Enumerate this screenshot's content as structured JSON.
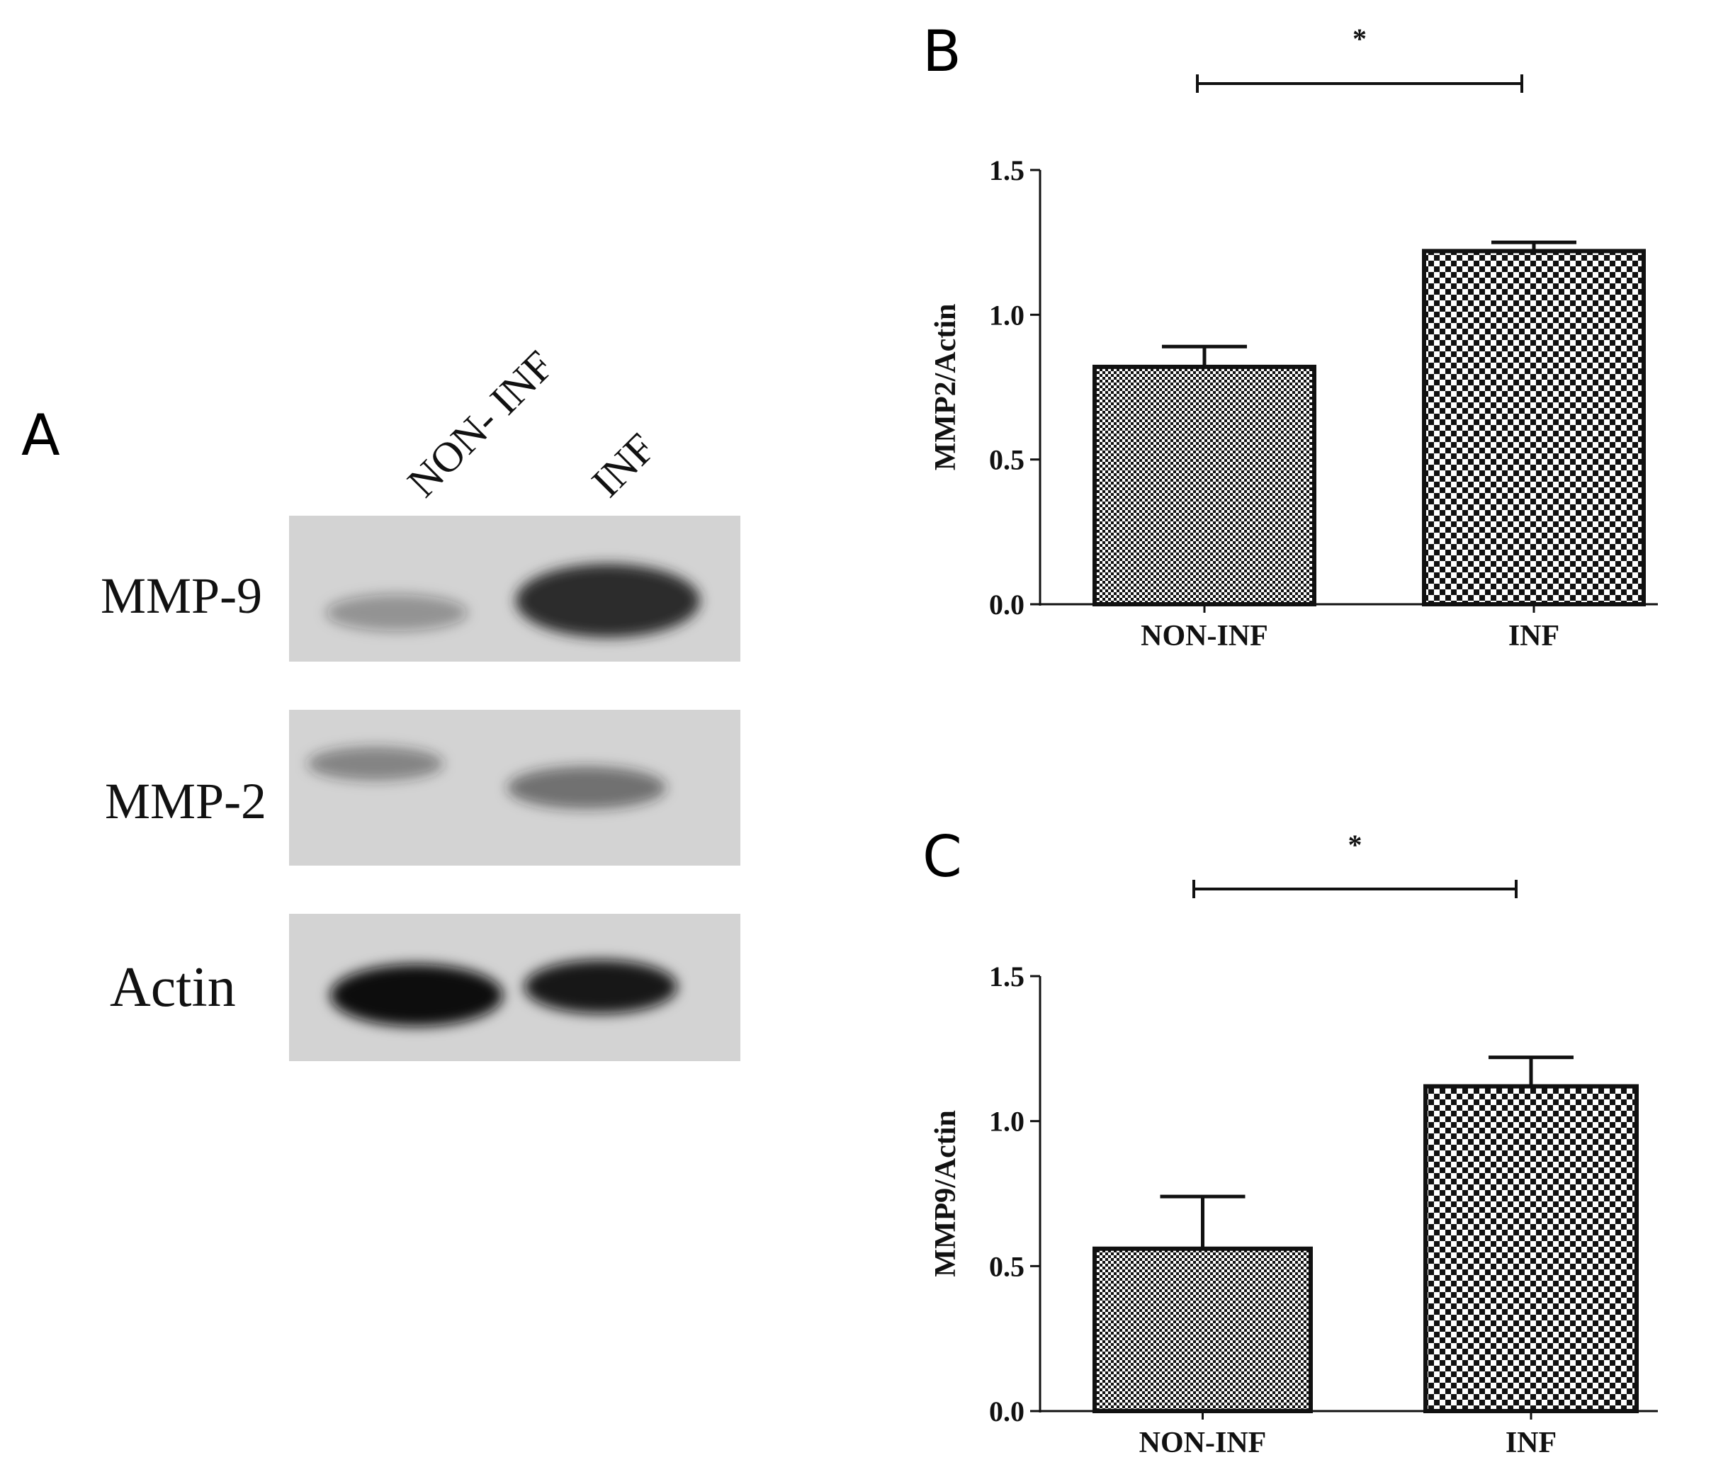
{
  "panels": {
    "a": {
      "letter": "A",
      "lanes": [
        "NON- INF",
        "INF"
      ],
      "blots": [
        {
          "label": "MMP-9",
          "bands": [
            0.35,
            0.95
          ]
        },
        {
          "label": "MMP-2",
          "bands": [
            0.45,
            0.55
          ]
        },
        {
          "label": "Actin",
          "bands": [
            1.0,
            0.95
          ]
        }
      ]
    },
    "b": {
      "letter": "B"
    },
    "c": {
      "letter": "C"
    }
  },
  "chart_data": [
    {
      "type": "bar",
      "panel": "B",
      "categories": [
        "NON-INF",
        "INF"
      ],
      "values": [
        0.82,
        1.22
      ],
      "error": [
        0.07,
        0.03
      ],
      "ylabel": "MMP2/Actin",
      "ylim": [
        0,
        1.5
      ],
      "yticks": [
        "0.0",
        "0.5",
        "1.0",
        "1.5"
      ],
      "significance": "*",
      "patterns": [
        "fine-dots",
        "checker"
      ],
      "grid": false
    },
    {
      "type": "bar",
      "panel": "C",
      "categories": [
        "NON-INF",
        "INF"
      ],
      "values": [
        0.56,
        1.12
      ],
      "error": [
        0.18,
        0.1
      ],
      "ylabel": "MMP9/Actin",
      "ylim": [
        0,
        1.5
      ],
      "yticks": [
        "0.0",
        "0.5",
        "1.0",
        "1.5"
      ],
      "significance": "*",
      "patterns": [
        "fine-dots",
        "checker"
      ],
      "grid": false
    }
  ]
}
